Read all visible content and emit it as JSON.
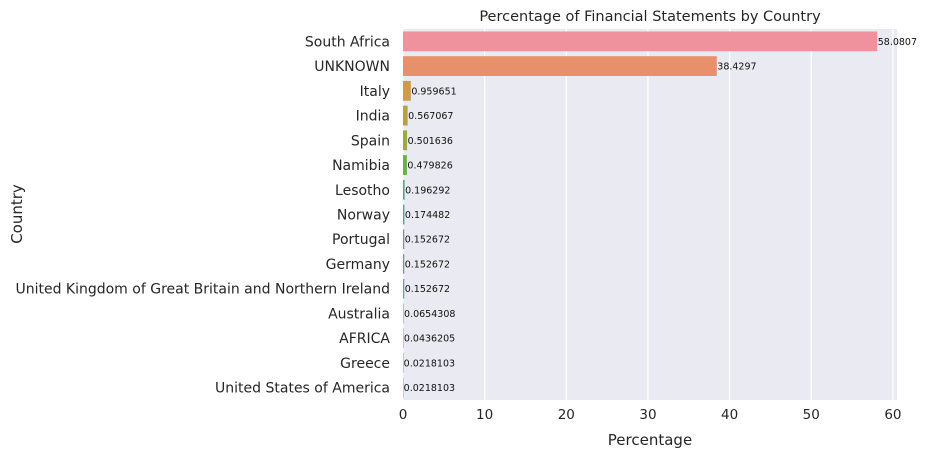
{
  "chart_data": {
    "type": "bar",
    "orientation": "horizontal",
    "title": "Percentage of Financial Statements by Country",
    "xlabel": "Percentage",
    "ylabel": "Country",
    "xlim": [
      0,
      60.5
    ],
    "xticks": [
      0,
      10,
      20,
      30,
      40,
      50,
      60
    ],
    "grid": true,
    "categories": [
      "South Africa",
      "UNKNOWN",
      "Italy",
      "India",
      "Spain",
      "Namibia",
      "Lesotho",
      "Norway",
      "Portugal",
      "Germany",
      "United Kingdom of Great Britain and Northern Ireland",
      "Australia",
      "AFRICA",
      "Greece",
      "United States of America"
    ],
    "values": [
      58.0807,
      38.4297,
      0.959651,
      0.567067,
      0.501636,
      0.479826,
      0.196292,
      0.174482,
      0.152672,
      0.152672,
      0.152672,
      0.0654308,
      0.0436205,
      0.0218103,
      0.0218103
    ],
    "value_labels": [
      "58.0807",
      "38.4297",
      "0.959651",
      "0.567067",
      "0.501636",
      "0.479826",
      "0.196292",
      "0.174482",
      "0.152672",
      "0.152672",
      "0.152672",
      "0.0654308",
      "0.0436205",
      "0.0218103",
      "0.0218103"
    ],
    "colors": [
      "#f0919e",
      "#e8906a",
      "#d19a4b",
      "#b7a23f",
      "#9da83f",
      "#6cb049",
      "#48ad86",
      "#4aab99",
      "#4aa9a7",
      "#4ba6b4",
      "#55a4c8",
      "#8aa3df",
      "#b59ae6",
      "#d88de6",
      "#ec8ccb"
    ],
    "background": "#eaeaf2"
  }
}
